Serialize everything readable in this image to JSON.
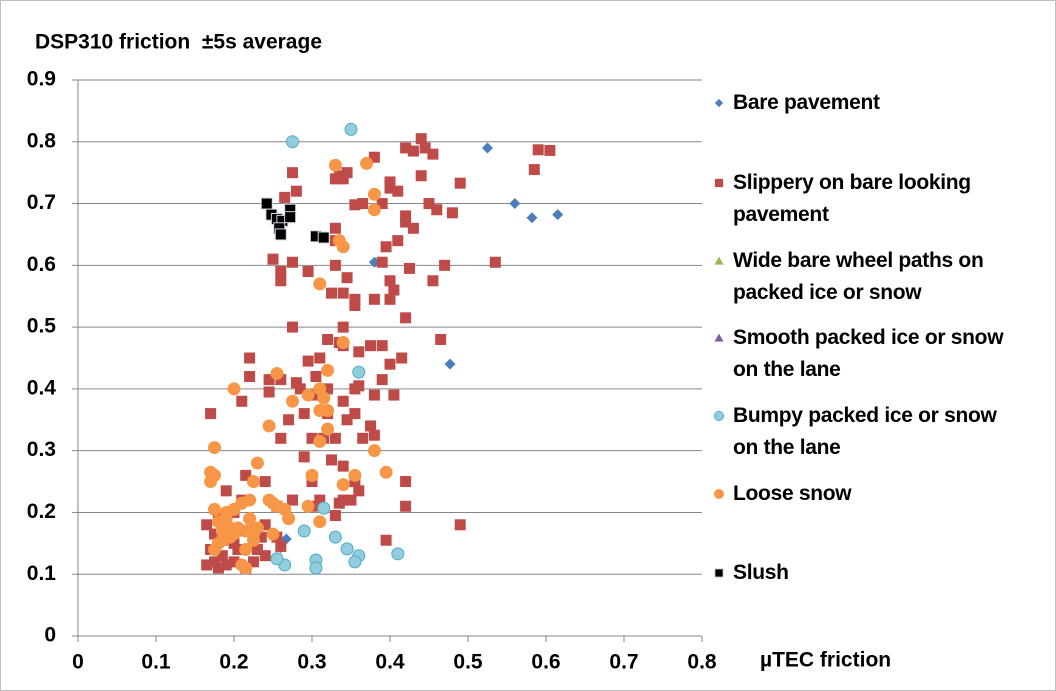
{
  "chart_data": {
    "type": "scatter",
    "title": "DSP310 friction  ±5s average",
    "xlabel": "µTEC friction",
    "xlim": [
      0,
      0.8
    ],
    "xticks": [
      0,
      0.1,
      0.2,
      0.3,
      0.4,
      0.5,
      0.6,
      0.7,
      0.8
    ],
    "ylim": [
      0,
      0.9
    ],
    "yticks": [
      0,
      0.1,
      0.2,
      0.3,
      0.4,
      0.5,
      0.6,
      0.7,
      0.8,
      0.9
    ],
    "grid": true,
    "legend": "right",
    "series": [
      {
        "name": "Bare pavement",
        "color": "#4a7ebb",
        "marker": "diamond",
        "x": [
          0.525,
          0.56,
          0.582,
          0.615,
          0.38,
          0.477,
          0.267,
          0.26
        ],
        "values": [
          0.79,
          0.7,
          0.677,
          0.682,
          0.605,
          0.44,
          0.157,
          0.143
        ]
      },
      {
        "name": "Slippery on bare looking pavement",
        "color": "#be4b48",
        "marker": "square",
        "x": [
          0.44,
          0.42,
          0.445,
          0.455,
          0.43,
          0.59,
          0.605,
          0.585,
          0.49,
          0.44,
          0.4,
          0.38,
          0.345,
          0.34,
          0.335,
          0.33,
          0.365,
          0.355,
          0.39,
          0.41,
          0.4,
          0.45,
          0.48,
          0.42,
          0.43,
          0.42,
          0.46,
          0.33,
          0.41,
          0.395,
          0.39,
          0.425,
          0.47,
          0.535,
          0.4,
          0.455,
          0.345,
          0.33,
          0.33,
          0.325,
          0.34,
          0.355,
          0.355,
          0.38,
          0.4,
          0.405,
          0.42,
          0.25,
          0.26,
          0.26,
          0.275,
          0.295,
          0.265,
          0.28,
          0.275,
          0.275,
          0.26,
          0.295,
          0.31,
          0.305,
          0.34,
          0.34,
          0.32,
          0.335,
          0.36,
          0.375,
          0.39,
          0.4,
          0.415,
          0.465,
          0.39,
          0.405,
          0.38,
          0.355,
          0.36,
          0.34,
          0.32,
          0.305,
          0.3,
          0.315,
          0.32,
          0.33,
          0.345,
          0.355,
          0.375,
          0.38,
          0.365,
          0.325,
          0.34,
          0.29,
          0.27,
          0.28,
          0.285,
          0.245,
          0.245,
          0.22,
          0.22,
          0.21,
          0.17,
          0.26,
          0.29,
          0.35,
          0.355,
          0.36,
          0.335,
          0.34,
          0.42,
          0.42,
          0.395,
          0.49,
          0.3,
          0.3,
          0.33,
          0.31,
          0.275,
          0.255,
          0.24,
          0.24,
          0.235,
          0.23,
          0.24,
          0.22,
          0.215,
          0.21,
          0.21,
          0.2,
          0.2,
          0.19,
          0.185,
          0.18,
          0.18,
          0.175,
          0.17,
          0.165,
          0.165,
          0.19,
          0.2,
          0.185,
          0.175,
          0.205,
          0.215,
          0.225,
          0.255,
          0.26
        ],
        "values": [
          0.805,
          0.79,
          0.79,
          0.78,
          0.785,
          0.787,
          0.786,
          0.755,
          0.733,
          0.745,
          0.735,
          0.775,
          0.75,
          0.74,
          0.745,
          0.74,
          0.7,
          0.698,
          0.7,
          0.72,
          0.725,
          0.7,
          0.685,
          0.67,
          0.66,
          0.68,
          0.69,
          0.66,
          0.64,
          0.63,
          0.605,
          0.595,
          0.6,
          0.605,
          0.575,
          0.575,
          0.58,
          0.6,
          0.64,
          0.555,
          0.555,
          0.535,
          0.545,
          0.545,
          0.545,
          0.56,
          0.515,
          0.61,
          0.59,
          0.575,
          0.605,
          0.59,
          0.71,
          0.72,
          0.75,
          0.5,
          0.415,
          0.445,
          0.45,
          0.42,
          0.5,
          0.47,
          0.48,
          0.475,
          0.46,
          0.47,
          0.47,
          0.44,
          0.45,
          0.48,
          0.415,
          0.39,
          0.39,
          0.4,
          0.405,
          0.38,
          0.4,
          0.39,
          0.32,
          0.32,
          0.36,
          0.32,
          0.35,
          0.36,
          0.34,
          0.325,
          0.32,
          0.285,
          0.275,
          0.36,
          0.35,
          0.41,
          0.4,
          0.395,
          0.415,
          0.45,
          0.42,
          0.38,
          0.36,
          0.32,
          0.29,
          0.22,
          0.25,
          0.235,
          0.215,
          0.22,
          0.25,
          0.21,
          0.155,
          0.18,
          0.25,
          0.21,
          0.195,
          0.22,
          0.22,
          0.21,
          0.25,
          0.18,
          0.16,
          0.14,
          0.13,
          0.17,
          0.26,
          0.22,
          0.17,
          0.15,
          0.12,
          0.115,
          0.13,
          0.11,
          0.19,
          0.165,
          0.14,
          0.115,
          0.18,
          0.235,
          0.2,
          0.155,
          0.12,
          0.14,
          0.11,
          0.12,
          0.16,
          0.145
        ]
      },
      {
        "name": "Wide bare wheel paths on packed ice or snow",
        "color": "#98b954",
        "marker": "triangle",
        "x": [],
        "values": []
      },
      {
        "name": "Smooth packed ice or snow on the lane",
        "color": "#7d60a0",
        "marker": "triangle",
        "x": [],
        "values": []
      },
      {
        "name": "Bumpy packed ice or snow on the lane",
        "color": "#4bacc6",
        "marker": "circle",
        "x": [
          0.275,
          0.35,
          0.36,
          0.315,
          0.29,
          0.33,
          0.345,
          0.36,
          0.355,
          0.305,
          0.305,
          0.265,
          0.41,
          0.255
        ],
        "values": [
          0.8,
          0.82,
          0.427,
          0.207,
          0.17,
          0.16,
          0.141,
          0.13,
          0.12,
          0.123,
          0.11,
          0.115,
          0.133,
          0.125
        ]
      },
      {
        "name": "Loose snow",
        "color": "#f79646",
        "marker": "circle",
        "x": [
          0.33,
          0.37,
          0.38,
          0.38,
          0.335,
          0.34,
          0.31,
          0.255,
          0.2,
          0.295,
          0.32,
          0.31,
          0.315,
          0.34,
          0.275,
          0.245,
          0.31,
          0.32,
          0.32,
          0.31,
          0.38,
          0.395,
          0.355,
          0.34,
          0.3,
          0.23,
          0.175,
          0.17,
          0.175,
          0.17,
          0.225,
          0.245,
          0.25,
          0.255,
          0.265,
          0.27,
          0.31,
          0.295,
          0.22,
          0.21,
          0.2,
          0.19,
          0.175,
          0.18,
          0.185,
          0.195,
          0.205,
          0.215,
          0.225,
          0.23,
          0.195,
          0.2,
          0.185,
          0.175,
          0.215,
          0.225,
          0.21,
          0.215,
          0.25,
          0.22,
          0.19,
          0.18
        ],
        "values": [
          0.762,
          0.765,
          0.715,
          0.69,
          0.64,
          0.63,
          0.57,
          0.425,
          0.4,
          0.39,
          0.43,
          0.4,
          0.385,
          0.475,
          0.38,
          0.34,
          0.365,
          0.365,
          0.335,
          0.315,
          0.3,
          0.265,
          0.26,
          0.245,
          0.26,
          0.28,
          0.305,
          0.265,
          0.26,
          0.25,
          0.25,
          0.22,
          0.215,
          0.21,
          0.205,
          0.19,
          0.185,
          0.21,
          0.22,
          0.215,
          0.205,
          0.2,
          0.205,
          0.185,
          0.17,
          0.175,
          0.175,
          0.17,
          0.165,
          0.175,
          0.16,
          0.165,
          0.155,
          0.14,
          0.14,
          0.155,
          0.115,
          0.11,
          0.165,
          0.19,
          0.19,
          0.15
        ]
      },
      {
        "name": "Slush",
        "color": "#000000",
        "marker": "square-outlined",
        "x": [
          0.242,
          0.248,
          0.255,
          0.262,
          0.258,
          0.26,
          0.272,
          0.272,
          0.305,
          0.315
        ],
        "values": [
          0.7,
          0.682,
          0.675,
          0.672,
          0.66,
          0.65,
          0.69,
          0.678,
          0.647,
          0.645
        ]
      }
    ]
  }
}
